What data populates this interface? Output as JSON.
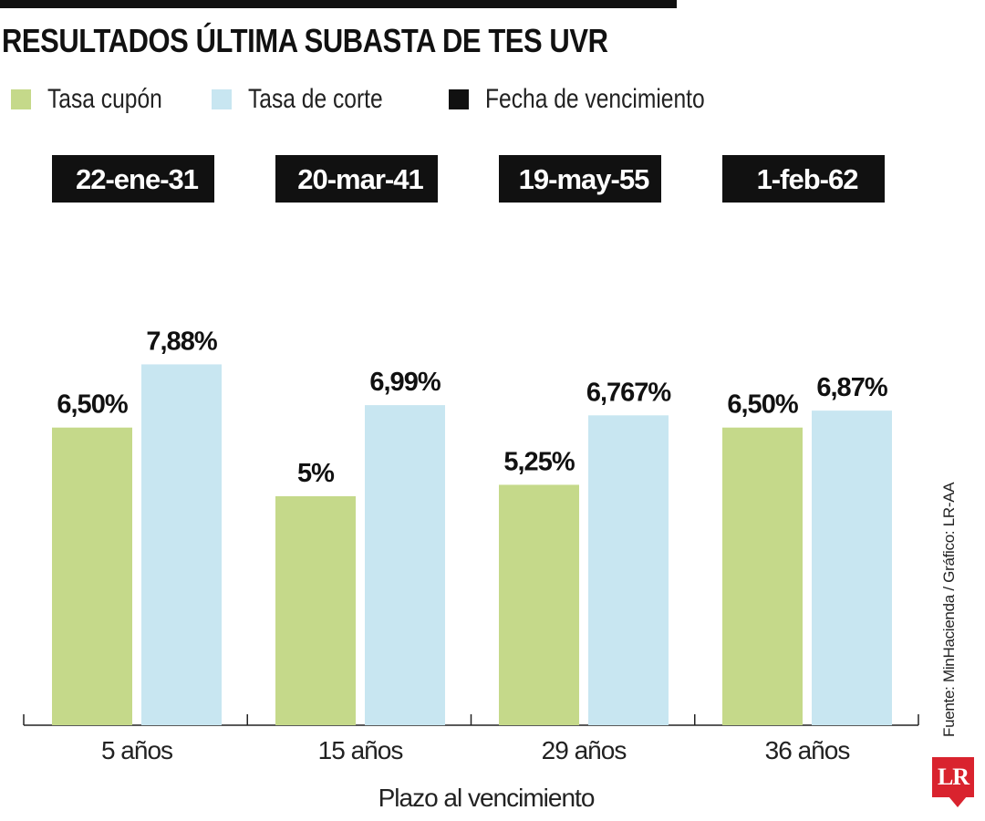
{
  "title": "RESULTADOS ÚLTIMA SUBASTA DE TES UVR",
  "legend": [
    {
      "label": "Tasa cupón",
      "color": "#c5d98a"
    },
    {
      "label": "Tasa de corte",
      "color": "#c8e6f1"
    },
    {
      "label": "Fecha de vencimiento",
      "color": "#111111"
    }
  ],
  "source": "Fuente: MinHacienda / Gráfico: LR-AA",
  "logo": "LR",
  "chart_data": {
    "type": "bar",
    "categories": [
      "5 años",
      "15 años",
      "29 años",
      "36 años"
    ],
    "maturity_dates": [
      "22-ene-31",
      "20-mar-41",
      "19-may-55",
      "1-feb-62"
    ],
    "series": [
      {
        "name": "Tasa cupón",
        "values": [
          6.5,
          5,
          5.25,
          6.5
        ],
        "labels": [
          "6,50%",
          "5%",
          "5,25%",
          "6,50%"
        ],
        "color": "#c5d98a"
      },
      {
        "name": "Tasa de corte",
        "values": [
          7.88,
          6.99,
          6.767,
          6.87
        ],
        "labels": [
          "7,88%",
          "6,99%",
          "6,767%",
          "6,87%"
        ],
        "color": "#c8e6f1"
      }
    ],
    "xlabel": "Plazo al vencimiento",
    "ylabel": "",
    "ylim": [
      0,
      9
    ],
    "grid": false
  }
}
